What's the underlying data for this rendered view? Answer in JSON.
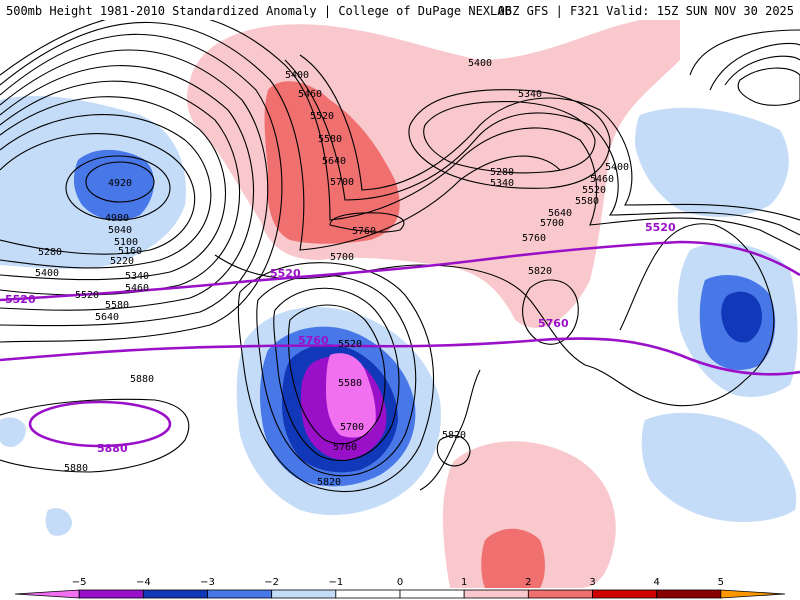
{
  "header": {
    "left_title": "500mb Height 1981-2010 Standardized Anomaly | College of DuPage NEXLAB",
    "right_title": "06Z GFS | F321 Valid: 15Z SUN NOV 30 2025"
  },
  "colors": {
    "neg5": "#f070f0",
    "neg4": "#9a10c8",
    "neg3": "#1038b8",
    "neg2": "#4878e8",
    "neg1": "#c4dcf8",
    "pos1": "#f8c8cc",
    "pos2": "#f07070",
    "pos3": "#d00000",
    "pos4": "#880000",
    "pos5": "#ff9800",
    "contour": "#000000",
    "highlight_contour": "#9a10c8"
  },
  "colorbar": {
    "ticks": [
      "−5",
      "−4",
      "−3",
      "−2",
      "−1",
      "0",
      "1",
      "2",
      "3",
      "4",
      "5"
    ]
  },
  "contour_labels": {
    "nw_low": [
      "4920",
      "4980",
      "5040",
      "5100",
      "5160",
      "5220",
      "5280",
      "5340",
      "5400",
      "5460",
      "5520",
      "5580",
      "5640"
    ],
    "ridge": [
      "5400",
      "5460",
      "5520",
      "5580",
      "5640",
      "5700",
      "5760",
      "5700"
    ],
    "alaska_low": [
      "5400",
      "5340",
      "5280",
      "5340",
      "5400",
      "5460",
      "5520",
      "5580",
      "5640",
      "5700",
      "5760"
    ],
    "cutoff_low": [
      "5520",
      "5580",
      "5700",
      "5760",
      "5820"
    ],
    "subtropic": [
      "5880",
      "5880",
      "5820",
      "5820"
    ],
    "highlight": [
      "5520",
      "5520",
      "5520",
      "5760",
      "5760",
      "5880"
    ]
  }
}
